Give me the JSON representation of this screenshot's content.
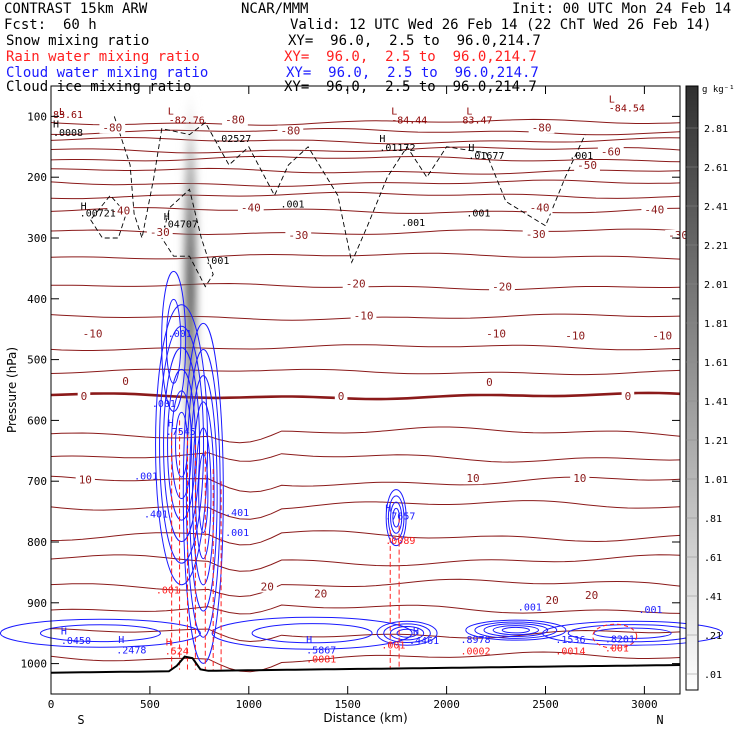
{
  "header": {
    "model": "CONTRAST 15km ARW",
    "fcst_label": "Fcst:",
    "fcst_value": "60 h",
    "center": "NCAR/MMM",
    "init": "Init: 00 UTC Mon 24 Feb 14",
    "valid": "Valid: 12 UTC Wed 26 Feb 14 (22 ChT Wed 26 Feb 14)",
    "fields": [
      {
        "name": "Snow mixing ratio",
        "color": "#000000",
        "xy": "XY=  96.0,  2.5 to  96.0,214.7"
      },
      {
        "name": "Rain water mixing ratio",
        "color": "#ff2020",
        "xy": "XY=  96.0,  2.5 to  96.0,214.7"
      },
      {
        "name": "Cloud water mixing ratio",
        "color": "#1a1aff",
        "xy": "XY=  96.0,  2.5 to  96.0,214.7"
      },
      {
        "name": "Cloud ice mixing ratio",
        "color": "#000000",
        "xy": "XY=  96.0,  2.5 to  96.0,214.7"
      }
    ]
  },
  "chart_data": {
    "type": "cross-section",
    "xlabel": "Distance (km)",
    "ylabel": "Pressure (hPa)",
    "xlim": [
      0,
      3180
    ],
    "ylim": [
      1050,
      50
    ],
    "x_ticks": [
      0,
      500,
      1000,
      1500,
      2000,
      2500,
      3000
    ],
    "y_ticks": [
      100,
      200,
      300,
      400,
      500,
      600,
      700,
      800,
      900,
      1000
    ],
    "end_labels": {
      "left": "S",
      "right": "N"
    },
    "colorbar": {
      "unit": "g kg⁻¹",
      "ticks": [
        "2.81",
        "2.61",
        "2.41",
        "2.21",
        "2.01",
        "1.81",
        "1.61",
        "1.41",
        "1.21",
        "1.01",
        ".81",
        ".61",
        ".41",
        ".21",
        ".01"
      ]
    },
    "temperature_labels": [
      {
        "x": 260,
        "p": 123,
        "t": "-80"
      },
      {
        "x": 880,
        "p": 110,
        "t": "-80"
      },
      {
        "x": 1160,
        "p": 128,
        "t": "-80"
      },
      {
        "x": 2430,
        "p": 123,
        "t": "-80"
      },
      {
        "x": 2780,
        "p": 163,
        "t": "-60"
      },
      {
        "x": 2660,
        "p": 185,
        "t": "-50"
      },
      {
        "x": 300,
        "p": 260,
        "t": "-40"
      },
      {
        "x": 960,
        "p": 255,
        "t": "-40"
      },
      {
        "x": 2420,
        "p": 255,
        "t": "-40"
      },
      {
        "x": 3000,
        "p": 258,
        "t": "-40"
      },
      {
        "x": 500,
        "p": 295,
        "t": "-30"
      },
      {
        "x": 1200,
        "p": 300,
        "t": "-30"
      },
      {
        "x": 2400,
        "p": 298,
        "t": "-30"
      },
      {
        "x": 3120,
        "p": 300,
        "t": "-30"
      },
      {
        "x": 1490,
        "p": 380,
        "t": "-20"
      },
      {
        "x": 2230,
        "p": 385,
        "t": "-20"
      },
      {
        "x": 1530,
        "p": 432,
        "t": "-10"
      },
      {
        "x": 160,
        "p": 462,
        "t": "-10"
      },
      {
        "x": 2200,
        "p": 462,
        "t": "-10"
      },
      {
        "x": 2600,
        "p": 465,
        "t": "-10"
      },
      {
        "x": 3040,
        "p": 465,
        "t": "-10"
      },
      {
        "x": 150,
        "p": 565,
        "t": "0"
      },
      {
        "x": 360,
        "p": 540,
        "t": "0"
      },
      {
        "x": 1450,
        "p": 565,
        "t": "0"
      },
      {
        "x": 2200,
        "p": 542,
        "t": "0"
      },
      {
        "x": 2900,
        "p": 565,
        "t": "0"
      },
      {
        "x": 140,
        "p": 702,
        "t": "10"
      },
      {
        "x": 2100,
        "p": 700,
        "t": "10"
      },
      {
        "x": 2640,
        "p": 700,
        "t": "10"
      },
      {
        "x": 1060,
        "p": 878,
        "t": "20"
      },
      {
        "x": 1330,
        "p": 890,
        "t": "20"
      },
      {
        "x": 2500,
        "p": 900,
        "t": "20"
      },
      {
        "x": 2700,
        "p": 892,
        "t": "20"
      }
    ],
    "extrema_labels": [
      {
        "x": 40,
        "p": 98,
        "t": "L",
        "c": "#8b0000"
      },
      {
        "x": 10,
        "p": 103,
        "t": "83.61",
        "c": "#8b0000"
      },
      {
        "x": 10,
        "p": 118,
        "t": "H",
        "c": "#000"
      },
      {
        "x": 10,
        "p": 132,
        "t": ".0008",
        "c": "#000"
      },
      {
        "x": 590,
        "p": 97,
        "t": "L",
        "c": "#8b0000"
      },
      {
        "x": 595,
        "p": 112,
        "t": "-82.76",
        "c": "#8b0000"
      },
      {
        "x": 830,
        "p": 142,
        "t": ".02527",
        "c": "#000"
      },
      {
        "x": 1720,
        "p": 97,
        "t": "L",
        "c": "#8b0000"
      },
      {
        "x": 1720,
        "p": 112,
        "t": "-84.44",
        "c": "#8b0000"
      },
      {
        "x": 1660,
        "p": 142,
        "t": "H",
        "c": "#000"
      },
      {
        "x": 1660,
        "p": 157,
        "t": ".01172",
        "c": "#000"
      },
      {
        "x": 2100,
        "p": 97,
        "t": "L",
        "c": "#8b0000"
      },
      {
        "x": 2080,
        "p": 112,
        "t": "83.47",
        "c": "#8b0000"
      },
      {
        "x": 2110,
        "p": 157,
        "t": "H",
        "c": "#000"
      },
      {
        "x": 2110,
        "p": 170,
        "t": ".01677",
        "c": "#000"
      },
      {
        "x": 2820,
        "p": 77,
        "t": "L",
        "c": "#8b0000"
      },
      {
        "x": 2820,
        "p": 92,
        "t": "-84.54",
        "c": "#8b0000"
      },
      {
        "x": 2620,
        "p": 170,
        "t": ".001",
        "c": "#000"
      },
      {
        "x": 150,
        "p": 253,
        "t": "H",
        "c": "#000"
      },
      {
        "x": 145,
        "p": 265,
        "t": ".00721",
        "c": "#000"
      },
      {
        "x": 570,
        "p": 270,
        "t": "H",
        "c": "#000"
      },
      {
        "x": 560,
        "p": 283,
        "t": ".04707",
        "c": "#000"
      },
      {
        "x": 780,
        "p": 343,
        "t": ".001",
        "c": "#000"
      },
      {
        "x": 1160,
        "p": 250,
        "t": ".001",
        "c": "#000"
      },
      {
        "x": 1770,
        "p": 280,
        "t": ".001",
        "c": "#000"
      },
      {
        "x": 2100,
        "p": 265,
        "t": ".001",
        "c": "#000"
      },
      {
        "x": 590,
        "p": 463,
        "t": ".001",
        "c": "#1a1aff"
      },
      {
        "x": 510,
        "p": 578,
        "t": ".001",
        "c": "#1a1aff"
      },
      {
        "x": 590,
        "p": 610,
        "t": "H",
        "c": "#1a1aff"
      },
      {
        "x": 580,
        "p": 624,
        "t": ".7545",
        "c": "#1a1aff"
      },
      {
        "x": 420,
        "p": 697,
        "t": ".001",
        "c": "#1a1aff"
      },
      {
        "x": 470,
        "p": 760,
        "t": ".401",
        "c": "#1a1aff"
      },
      {
        "x": 880,
        "p": 757,
        "t": ".401",
        "c": "#1a1aff"
      },
      {
        "x": 880,
        "p": 790,
        "t": ".001",
        "c": "#1a1aff"
      },
      {
        "x": 1690,
        "p": 750,
        "t": "H",
        "c": "#1a1aff"
      },
      {
        "x": 1690,
        "p": 763,
        "t": ".7657",
        "c": "#1a1aff"
      },
      {
        "x": 1690,
        "p": 803,
        "t": ".0089",
        "c": "#ff2020"
      },
      {
        "x": 530,
        "p": 885,
        "t": ".001",
        "c": "#ff2020"
      },
      {
        "x": 50,
        "p": 952,
        "t": "H",
        "c": "#1a1aff"
      },
      {
        "x": 50,
        "p": 968,
        "t": ".0450",
        "c": "#1a1aff"
      },
      {
        "x": 340,
        "p": 966,
        "t": "H",
        "c": "#1a1aff"
      },
      {
        "x": 330,
        "p": 983,
        "t": ".2478",
        "c": "#1a1aff"
      },
      {
        "x": 580,
        "p": 970,
        "t": "H",
        "c": "#ff2020"
      },
      {
        "x": 575,
        "p": 985,
        "t": ".524",
        "c": "#ff2020"
      },
      {
        "x": 1290,
        "p": 966,
        "t": "H",
        "c": "#1a1aff"
      },
      {
        "x": 1290,
        "p": 983,
        "t": ".5867",
        "c": "#1a1aff"
      },
      {
        "x": 1290,
        "p": 998,
        "t": ".0081",
        "c": "#ff2020"
      },
      {
        "x": 1670,
        "p": 975,
        "t": ".001",
        "c": "#ff2020"
      },
      {
        "x": 1830,
        "p": 952,
        "t": "H",
        "c": "#1a1aff"
      },
      {
        "x": 1810,
        "p": 968,
        "t": ".4461",
        "c": "#1a1aff"
      },
      {
        "x": 2070,
        "p": 966,
        "t": ".8978",
        "c": "#1a1aff"
      },
      {
        "x": 2070,
        "p": 985,
        "t": ".0002",
        "c": "#ff2020"
      },
      {
        "x": 2360,
        "p": 913,
        "t": ".001",
        "c": "#1a1aff"
      },
      {
        "x": 2550,
        "p": 966,
        "t": ".1536",
        "c": "#1a1aff"
      },
      {
        "x": 2550,
        "p": 985,
        "t": ".0014",
        "c": "#ff2020"
      },
      {
        "x": 2800,
        "p": 965,
        "t": ".8201",
        "c": "#1a1aff"
      },
      {
        "x": 2800,
        "p": 980,
        "t": ".001",
        "c": "#ff2020"
      },
      {
        "x": 2970,
        "p": 917,
        "t": ".001",
        "c": "#1a1aff"
      }
    ]
  }
}
